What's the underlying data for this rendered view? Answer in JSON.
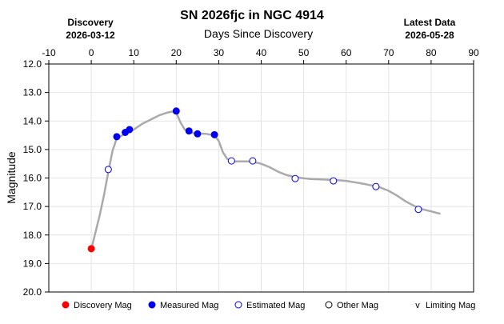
{
  "chart_data": {
    "type": "scatter",
    "title": "SN 2026fjc in NGC 4914",
    "xlabel": "Days Since Discovery",
    "ylabel": "Magnitude",
    "xlim": [
      -10,
      90
    ],
    "ylim": [
      20.0,
      12.0
    ],
    "y_inverted": true,
    "grid": true,
    "x_axis_position": "top",
    "legend_position": "bottom",
    "xticks": [
      "-10",
      "0",
      "10",
      "20",
      "30",
      "40",
      "50",
      "60",
      "70",
      "80",
      "90"
    ],
    "yticks": [
      "12.0",
      "13.0",
      "14.0",
      "15.0",
      "16.0",
      "17.0",
      "18.0",
      "19.0",
      "20.0"
    ],
    "discovery": {
      "label": "Discovery",
      "date": "2026-03-12"
    },
    "latest": {
      "label": "Latest Data",
      "date": "2026-05-28"
    },
    "fit_curve": {
      "color": "#aaaaaa",
      "x": [
        0,
        1,
        2,
        3,
        4,
        5,
        6,
        8,
        10,
        12,
        14,
        16,
        18,
        19,
        20,
        21,
        22,
        23,
        24,
        25,
        27,
        29,
        30,
        31,
        32,
        33,
        35,
        37,
        38,
        40,
        42,
        44,
        46,
        48,
        50,
        52,
        54,
        56,
        58,
        60,
        62,
        64,
        66,
        68,
        70,
        72,
        74,
        76,
        78,
        80,
        82
      ],
      "y": [
        18.5,
        17.9,
        17.3,
        16.6,
        15.8,
        15.05,
        14.6,
        14.45,
        14.3,
        14.1,
        13.95,
        13.8,
        13.7,
        13.67,
        13.7,
        14.05,
        14.3,
        14.38,
        14.42,
        14.44,
        14.45,
        14.5,
        14.7,
        15.1,
        15.33,
        15.42,
        15.42,
        15.42,
        15.43,
        15.5,
        15.62,
        15.78,
        15.9,
        15.97,
        16.01,
        16.04,
        16.05,
        16.06,
        16.08,
        16.1,
        16.15,
        16.2,
        16.26,
        16.33,
        16.45,
        16.62,
        16.82,
        16.98,
        17.1,
        17.17,
        17.25
      ]
    },
    "series": [
      {
        "name": "Discovery Mag",
        "color": "#ff0000",
        "fill": "#ff0000",
        "points": [
          [
            0,
            18.48
          ]
        ]
      },
      {
        "name": "Measured Mag",
        "color": "#0000ee",
        "fill": "#0000ee",
        "points": [
          [
            6,
            14.55
          ],
          [
            8,
            14.4
          ],
          [
            9,
            14.3
          ],
          [
            20,
            13.65
          ],
          [
            23,
            14.35
          ],
          [
            25,
            14.45
          ],
          [
            29,
            14.48
          ]
        ]
      },
      {
        "name": "Estimated Mag",
        "color": "#0000ee",
        "fill": "#ffffff",
        "points": [
          [
            4,
            15.7
          ],
          [
            33,
            15.4
          ],
          [
            38,
            15.4
          ],
          [
            48,
            16.02
          ],
          [
            57,
            16.1
          ],
          [
            67,
            16.3
          ],
          [
            77,
            17.1
          ]
        ]
      },
      {
        "name": "Other Mag",
        "color": "#000000",
        "fill": "#ffffff",
        "points": []
      },
      {
        "name": "Limiting Mag",
        "color": "#000000",
        "fill": "none",
        "points": []
      }
    ]
  }
}
